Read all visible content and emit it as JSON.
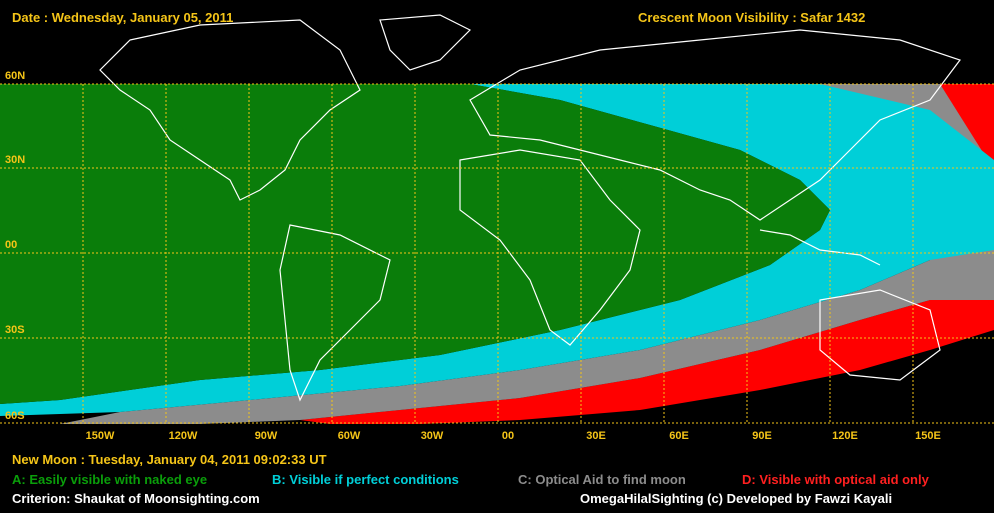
{
  "header": {
    "date": "Date : Wednesday, January 05, 2011",
    "title": "Crescent Moon Visibility : Safar  1432"
  },
  "lat_labels": [
    "60N",
    "30N",
    "00",
    "30S",
    "60S"
  ],
  "lon_labels": [
    "150W",
    "120W",
    "90W",
    "60W",
    "30W",
    "00",
    "30E",
    "60E",
    "90E",
    "120E",
    "150E"
  ],
  "footer": {
    "new_moon": "New Moon : Tuesday, January 04, 2011  09:02:33  UT",
    "legend_a": "A: Easily visible with naked eye",
    "legend_b": "B: Visible if perfect conditions",
    "legend_c": "C: Optical Aid to find moon",
    "legend_d": "D: Visible with optical aid only",
    "criterion": "Criterion: Shaukat of Moonsighting.com",
    "credit": "OmegaHilalSighting  (c)  Developed by Fawzi Kayali"
  },
  "colors": {
    "zone_a": "#0a7d0a",
    "zone_b": "#00cfd8",
    "zone_c": "#8c8c8c",
    "zone_d": "#ff0000",
    "no_visibility": "#000000",
    "grid": "#f5c518",
    "coast": "#ffffff"
  }
}
